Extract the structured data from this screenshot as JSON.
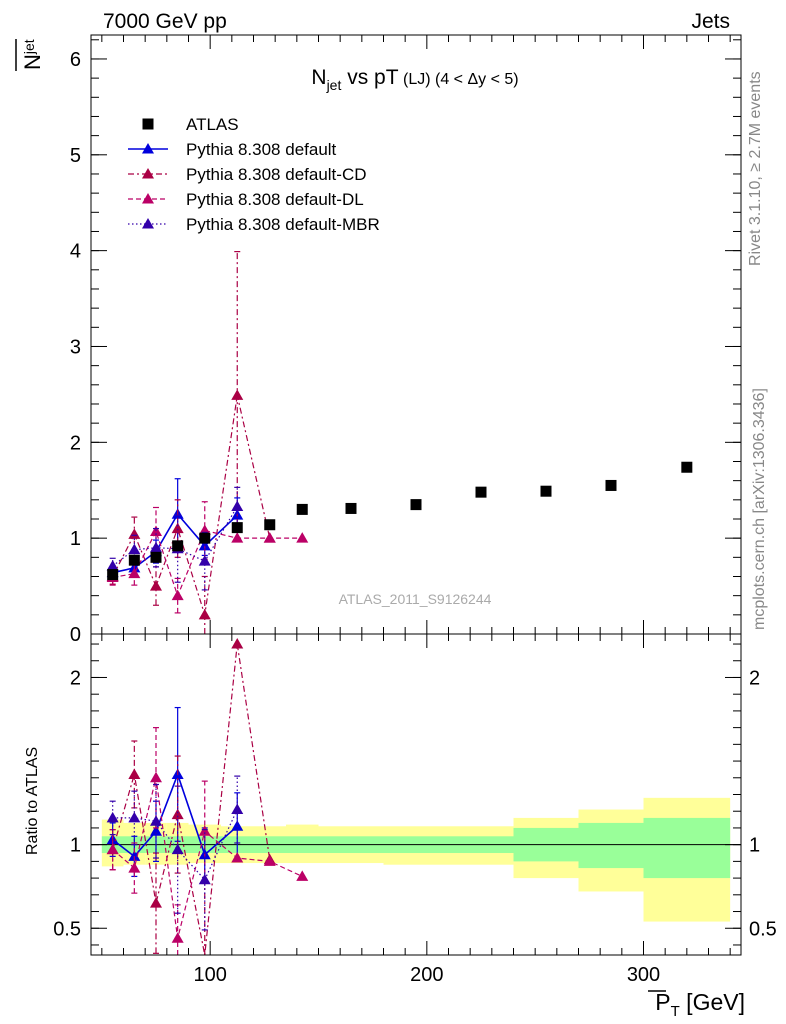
{
  "header": {
    "left": "7000 GeV pp",
    "right": "Jets",
    "side_top": "Rivet 3.1.10, ≥ 2.7M events",
    "side_bottom": "mcplots.cern.ch [arXiv:1306.3436]",
    "watermark": "ATLAS_2011_S9126244"
  },
  "labels": {
    "ylabel_main_base": "N",
    "ylabel_main_sub": "jet",
    "ylabel_ratio": "Ratio to ATLAS",
    "xlabel_base": "P",
    "xlabel_sub": "T",
    "xlabel_unit": " [GeV]",
    "title_n": "N",
    "title_sub": "jet",
    "title_mid": " vs pT",
    "title_tag": " (LJ) (4 < Δy < 5)"
  },
  "colors": {
    "atlas": "#000000",
    "default": "#0000dd",
    "cd": "#aa0044",
    "dl": "#bb0066",
    "mbr": "#3300aa",
    "band_yellow": "#ffff99",
    "band_green": "#99ff99"
  },
  "chart_data": [
    {
      "type": "scatter",
      "panel": "main",
      "xlim": [
        45,
        345
      ],
      "ylim": [
        0,
        6.25
      ],
      "yticks": [
        0,
        1,
        2,
        3,
        4,
        5,
        6
      ],
      "xticks": [
        100,
        200,
        300
      ],
      "legend_position": "top-left",
      "series": [
        {
          "name": "ATLAS",
          "key": "atlas",
          "marker": "square",
          "x": [
            55,
            65,
            75,
            85,
            97.5,
            112.5,
            127.5,
            142.5,
            165,
            195,
            225,
            255,
            285,
            320
          ],
          "y": [
            0.62,
            0.77,
            0.8,
            0.92,
            1.0,
            1.11,
            1.14,
            1.3,
            1.31,
            1.35,
            1.48,
            1.49,
            1.55,
            1.74
          ]
        },
        {
          "name": "Pythia 8.308 default",
          "key": "default",
          "style": "solid",
          "x": [
            55,
            65,
            75,
            85,
            97.5,
            112.5
          ],
          "y": [
            0.64,
            0.69,
            0.86,
            1.25,
            0.92,
            1.24
          ],
          "err": [
            0.06,
            0.08,
            0.12,
            0.37,
            0.1,
            0.18
          ]
        },
        {
          "name": "Pythia 8.308 default-CD",
          "key": "cd",
          "style": "dashdot",
          "x": [
            55,
            65,
            75,
            85,
            97.5,
            112.5,
            127.5
          ],
          "y": [
            0.6,
            1.04,
            0.5,
            1.1,
            0.2,
            2.49,
            1.0
          ],
          "err": [
            0.08,
            0.18,
            0.2,
            0.3,
            0.4,
            1.5,
            0
          ]
        },
        {
          "name": "Pythia 8.308 default-DL",
          "key": "dl",
          "style": "dashed",
          "x": [
            55,
            65,
            75,
            85,
            97.5,
            112.5,
            127.5,
            142.5
          ],
          "y": [
            0.59,
            0.63,
            1.07,
            0.4,
            1.08,
            1.0,
            1.0,
            1.0
          ],
          "err": [
            0.08,
            0.12,
            0.25,
            0.18,
            0.3,
            0,
            0,
            0
          ]
        },
        {
          "name": "Pythia 8.308 default-MBR",
          "key": "mbr",
          "style": "dotted",
          "x": [
            55,
            65,
            75,
            85,
            97.5,
            112.5
          ],
          "y": [
            0.71,
            0.88,
            0.9,
            0.89,
            0.76,
            1.33
          ],
          "err": [
            0.08,
            0.15,
            0.2,
            0.35,
            0.3,
            0.2
          ]
        }
      ]
    },
    {
      "type": "scatter",
      "panel": "ratio",
      "xlim": [
        45,
        345
      ],
      "ylim": [
        0.34,
        2.26
      ],
      "yticks": [
        0.5,
        1,
        2
      ],
      "xticks": [
        100,
        200,
        300
      ],
      "bands": {
        "edges": [
          50,
          60,
          70,
          80,
          90,
          105,
          120,
          135,
          150,
          180,
          210,
          240,
          270,
          300,
          340
        ],
        "yellow_lo": [
          0.87,
          0.88,
          0.88,
          0.88,
          0.89,
          0.89,
          0.89,
          0.89,
          0.89,
          0.88,
          0.88,
          0.8,
          0.72,
          0.54
        ],
        "yellow_hi": [
          1.15,
          1.13,
          1.13,
          1.13,
          1.12,
          1.11,
          1.11,
          1.12,
          1.11,
          1.11,
          1.11,
          1.16,
          1.21,
          1.28
        ],
        "green_lo": [
          0.95,
          0.95,
          0.95,
          0.95,
          0.95,
          0.95,
          0.95,
          0.95,
          0.95,
          0.95,
          0.95,
          0.9,
          0.86,
          0.8
        ],
        "green_hi": [
          1.05,
          1.05,
          1.05,
          1.05,
          1.05,
          1.05,
          1.05,
          1.05,
          1.05,
          1.05,
          1.05,
          1.1,
          1.13,
          1.16
        ]
      },
      "series": [
        {
          "key": "default",
          "style": "solid",
          "x": [
            55,
            65,
            75,
            85,
            97.5,
            112.5
          ],
          "y": [
            1.03,
            0.93,
            1.08,
            1.42,
            0.94,
            1.11
          ],
          "err": [
            0.1,
            0.12,
            0.18,
            0.4,
            0.16,
            0.2
          ]
        },
        {
          "key": "cd",
          "style": "dashdot",
          "x": [
            55,
            65,
            75,
            85,
            97.5,
            112.5,
            127.5
          ],
          "y": [
            0.97,
            1.42,
            0.65,
            1.18,
            0.33,
            2.2,
            0.91
          ],
          "err": [
            0.12,
            0.2,
            0.3,
            0.35,
            0.45,
            0,
            0
          ]
        },
        {
          "key": "dl",
          "style": "dashed",
          "x": [
            55,
            65,
            75,
            85,
            97.5,
            112.5,
            127.5,
            142.5
          ],
          "y": [
            0.97,
            0.86,
            1.4,
            0.44,
            1.08,
            0.92,
            0.9,
            0.81
          ],
          "err": [
            0.12,
            0.15,
            0.3,
            0.2,
            0.3,
            0,
            0,
            0
          ]
        },
        {
          "key": "mbr",
          "style": "dotted",
          "x": [
            55,
            65,
            75,
            85,
            97.5,
            112.5
          ],
          "y": [
            1.16,
            1.16,
            1.14,
            0.97,
            0.79,
            1.21
          ],
          "err": [
            0.1,
            0.16,
            0.22,
            0.38,
            0.3,
            0.2
          ]
        }
      ]
    }
  ]
}
